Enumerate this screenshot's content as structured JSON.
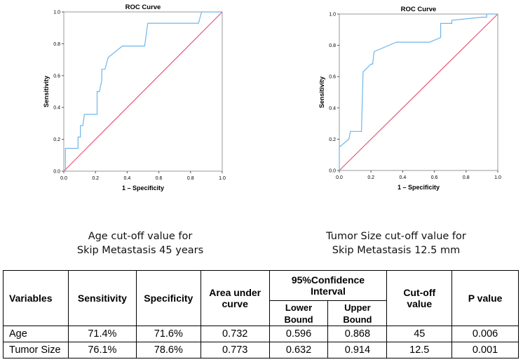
{
  "chart_data": [
    {
      "type": "line",
      "title": "ROC Curve",
      "xlabel": "1 – Specificity",
      "ylabel": "Sensitivity",
      "xlim": [
        0,
        1
      ],
      "ylim": [
        0,
        1
      ],
      "xticks": [
        "0.0",
        "0.2",
        "0.4",
        "0.6",
        "0.8",
        "1.0"
      ],
      "yticks": [
        "0.0",
        "0.2",
        "0.4",
        "0.6",
        "0.8",
        "1.0"
      ],
      "series": [
        {
          "name": "ROC",
          "color": "#6fb6ea",
          "points": [
            [
              0,
              0
            ],
            [
              0.01,
              0
            ],
            [
              0.01,
              0.143
            ],
            [
              0.09,
              0.143
            ],
            [
              0.09,
              0.214
            ],
            [
              0.105,
              0.214
            ],
            [
              0.105,
              0.286
            ],
            [
              0.12,
              0.286
            ],
            [
              0.13,
              0.357
            ],
            [
              0.21,
              0.357
            ],
            [
              0.21,
              0.5
            ],
            [
              0.225,
              0.5
            ],
            [
              0.24,
              0.57
            ],
            [
              0.24,
              0.64
            ],
            [
              0.26,
              0.64
            ],
            [
              0.28,
              0.714
            ],
            [
              0.37,
              0.786
            ],
            [
              0.51,
              0.786
            ],
            [
              0.53,
              0.929
            ],
            [
              0.85,
              0.929
            ],
            [
              0.87,
              1.0
            ],
            [
              1.0,
              1.0
            ]
          ]
        },
        {
          "name": "Reference line",
          "color": "#e8567a",
          "points": [
            [
              0,
              0
            ],
            [
              1,
              1
            ]
          ]
        }
      ]
    },
    {
      "type": "line",
      "title": "ROC Curve",
      "xlabel": "1 – Specificity",
      "ylabel": "Sensitivity",
      "xlim": [
        0,
        1
      ],
      "ylim": [
        0,
        1
      ],
      "xticks": [
        "0.0",
        "0.2",
        "0.4",
        "0.6",
        "0.8",
        "1.0"
      ],
      "yticks": [
        "0.0",
        "0.2",
        "0.4",
        "0.6",
        "0.8",
        "1.0"
      ],
      "series": [
        {
          "name": "ROC",
          "color": "#6fb6ea",
          "points": [
            [
              0,
              0
            ],
            [
              0,
              0.15
            ],
            [
              0.06,
              0.2
            ],
            [
              0.07,
              0.25
            ],
            [
              0.14,
              0.25
            ],
            [
              0.15,
              0.63
            ],
            [
              0.2,
              0.68
            ],
            [
              0.21,
              0.68
            ],
            [
              0.22,
              0.76
            ],
            [
              0.36,
              0.82
            ],
            [
              0.57,
              0.82
            ],
            [
              0.64,
              0.85
            ],
            [
              0.64,
              0.94
            ],
            [
              0.71,
              0.94
            ],
            [
              0.71,
              0.96
            ],
            [
              0.9,
              0.98
            ],
            [
              0.93,
              0.98
            ],
            [
              0.93,
              1.0
            ],
            [
              1.0,
              1.0
            ]
          ]
        },
        {
          "name": "Reference line",
          "color": "#e8567a",
          "points": [
            [
              0,
              0
            ],
            [
              1,
              1
            ]
          ]
        }
      ]
    }
  ],
  "captions": {
    "left": [
      "Age cut-off value for",
      "Skip Metastasis 45 years"
    ],
    "right": [
      "Tumor Size cut-off value for",
      "Skip Metastasis 12.5 mm"
    ]
  },
  "table": {
    "headers": {
      "variables": "Variables",
      "sensitivity": "Sensitivity",
      "specificity": "Specificity",
      "auc": [
        "Area under",
        "curve"
      ],
      "ci": [
        "95%Confidence",
        "Interval"
      ],
      "ci_lower": [
        "Lower",
        "Bound"
      ],
      "ci_upper": [
        "Upper",
        "Bound"
      ],
      "cutoff": [
        "Cut-off",
        "value"
      ],
      "pvalue": "P value"
    },
    "rows": [
      {
        "variable": "Age",
        "sensitivity": "71.4%",
        "specificity": "71.6%",
        "auc": "0.732",
        "lower": "0.596",
        "upper": "0.868",
        "cutoff": "45",
        "p": "0.006"
      },
      {
        "variable": "Tumor Size",
        "sensitivity": "76.1%",
        "specificity": "78.6%",
        "auc": "0.773",
        "lower": "0.632",
        "upper": "0.914",
        "cutoff": "12.5",
        "p": "0.001"
      }
    ]
  }
}
